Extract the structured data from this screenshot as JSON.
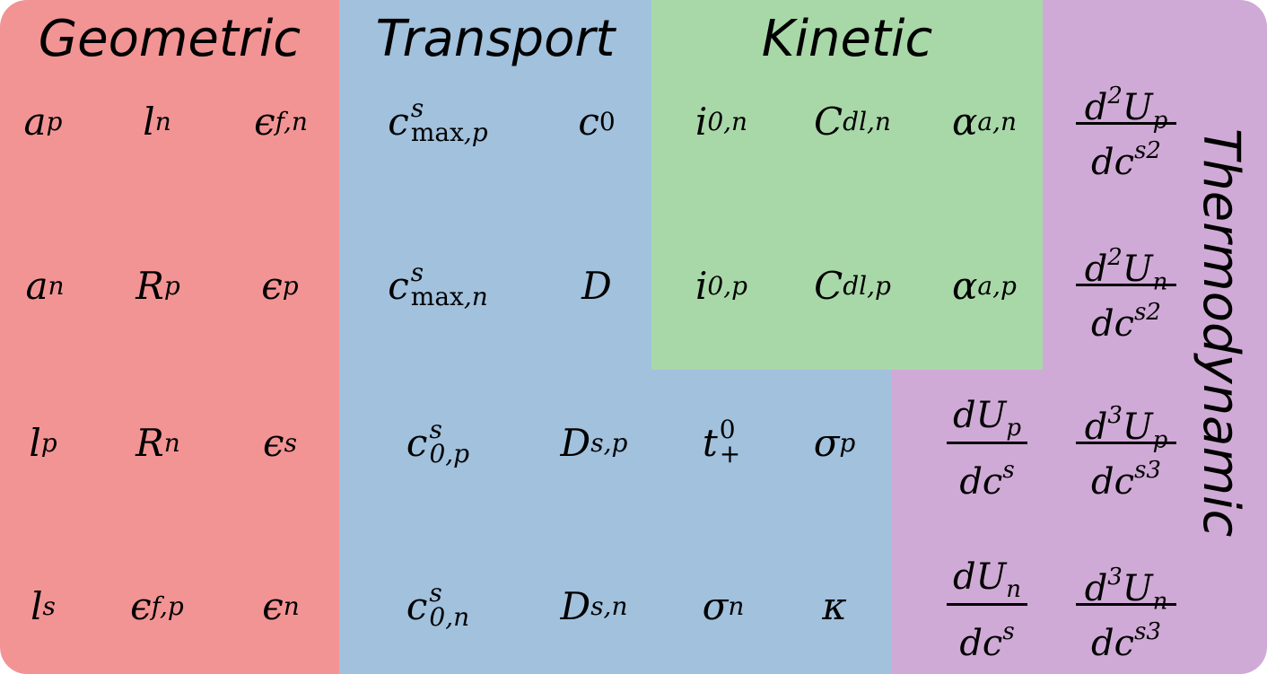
{
  "headers": {
    "geometric": "Geometric",
    "transport": "Transport",
    "kinetic": "Kinetic",
    "thermodynamic": "Thermodynamic"
  },
  "geometric": {
    "a_p": {
      "base": "a",
      "sub": "p"
    },
    "l_n": {
      "base": "l",
      "sub": "n"
    },
    "eps_fn": {
      "base": "ϵ",
      "sub": "f,n"
    },
    "a_n": {
      "base": "a",
      "sub": "n"
    },
    "R_p": {
      "base": "R",
      "sub": "p"
    },
    "eps_p": {
      "base": "ϵ",
      "sub": "p"
    },
    "l_p": {
      "base": "l",
      "sub": "p"
    },
    "R_n": {
      "base": "R",
      "sub": "n"
    },
    "eps_s": {
      "base": "ϵ",
      "sub": "s"
    },
    "l_s": {
      "base": "l",
      "sub": "s"
    },
    "eps_fp": {
      "base": "ϵ",
      "sub": "f,p"
    },
    "eps_n": {
      "base": "ϵ",
      "sub": "n"
    }
  },
  "transport": {
    "cs_max_p": {
      "base": "c",
      "sup": "s",
      "sub": "max",
      "sub2": ",p"
    },
    "c0": {
      "base": "c",
      "sub": "0"
    },
    "cs_max_n": {
      "base": "c",
      "sup": "s",
      "sub": "max",
      "sub2": ",n"
    },
    "D": {
      "base": "D"
    },
    "cs_0p": {
      "base": "c",
      "sup": "s",
      "sub": "0,p"
    },
    "Ds_p": {
      "base": "D",
      "sub": "s,p"
    },
    "t_plus0": {
      "base": "t",
      "sup": "0",
      "sub": "+"
    },
    "sigma_p": {
      "base": "σ",
      "sub": "p"
    },
    "cs_0n": {
      "base": "c",
      "sup": "s",
      "sub": "0,n"
    },
    "Ds_n": {
      "base": "D",
      "sub": "s,n"
    },
    "sigma_n": {
      "base": "σ",
      "sub": "n"
    },
    "kappa": {
      "base": "κ"
    }
  },
  "kinetic": {
    "i0n": {
      "base": "i",
      "sub": "0,n"
    },
    "Cdl_n": {
      "base": "C",
      "sub": "dl,n"
    },
    "alpha_an": {
      "base": "α",
      "sub": "a,n"
    },
    "i0p": {
      "base": "i",
      "sub": "0,p"
    },
    "Cdl_p": {
      "base": "C",
      "sub": "dl,p"
    },
    "alpha_ap": {
      "base": "α",
      "sub": "a,p"
    }
  },
  "thermodynamic": {
    "d2Up": {
      "num_d": "d",
      "num_pow": "2",
      "num_U": "U",
      "num_sub": "p",
      "den": "dc",
      "den_sup": "s",
      "den_pow": "2"
    },
    "d2Un": {
      "num_d": "d",
      "num_pow": "2",
      "num_U": "U",
      "num_sub": "n",
      "den": "dc",
      "den_sup": "s",
      "den_pow": "2"
    },
    "dUp": {
      "num_d": "d",
      "num_U": "U",
      "num_sub": "p",
      "den": "dc",
      "den_sup": "s"
    },
    "d3Up": {
      "num_d": "d",
      "num_pow": "3",
      "num_U": "U",
      "num_sub": "p",
      "den": "dc",
      "den_sup": "s",
      "den_pow": "3"
    },
    "dUn": {
      "num_d": "d",
      "num_U": "U",
      "num_sub": "n",
      "den": "dc",
      "den_sup": "s"
    },
    "d3Un": {
      "num_d": "d",
      "num_pow": "3",
      "num_U": "U",
      "num_sub": "n",
      "den": "dc",
      "den_sup": "s",
      "den_pow": "3"
    }
  },
  "colors": {
    "geometric": "#f29494",
    "transport": "#a1c1dd",
    "kinetic": "#a9d8a8",
    "thermodynamic": "#d0aad6"
  }
}
